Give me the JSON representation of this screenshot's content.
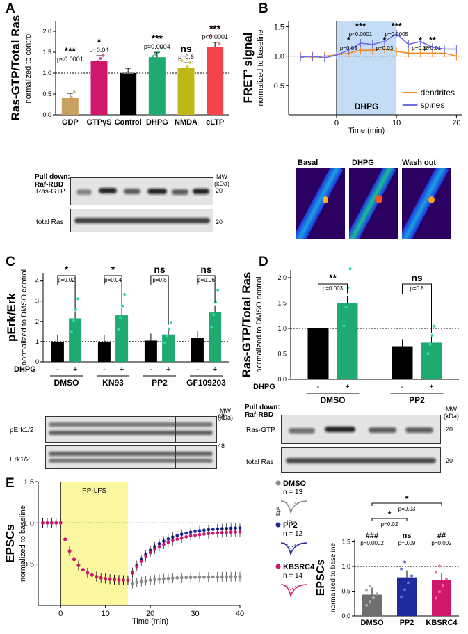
{
  "panels": {
    "A": {
      "label": "A",
      "ylabel": "Ras-GTP/Total Ras",
      "ysub": "normalized to control",
      "yticks": [
        "0.0",
        "0.5",
        "1.0",
        "1.5",
        "2.0"
      ],
      "bars": [
        {
          "name": "GDP",
          "value": 0.4,
          "color": "#c8a060",
          "stars": "***",
          "p": "p<0.0001",
          "points": [
            0.25,
            0.35,
            0.42,
            0.55,
            0.32
          ]
        },
        {
          "name": "GTPγS",
          "value": 1.3,
          "color": "#d0186b",
          "stars": "*",
          "p": "p=0.04",
          "points": [
            1.22,
            1.28,
            1.35,
            1.42
          ]
        },
        {
          "name": "Control",
          "value": 1.0,
          "color": "#000000",
          "stars": "",
          "p": "",
          "points": [
            1.0,
            1.0,
            1.0,
            1.0
          ]
        },
        {
          "name": "DHPG",
          "value": 1.38,
          "color": "#1faa72",
          "stars": "***",
          "p": "p=0.0004",
          "points": [
            1.1,
            1.2,
            1.3,
            1.35,
            1.4,
            1.45,
            1.5,
            1.6,
            1.25
          ]
        },
        {
          "name": "NMDA",
          "value": 1.13,
          "color": "#bfb817",
          "stars": "ns",
          "p": "p=0.6",
          "points": [
            0.9,
            1.05,
            1.15,
            1.25,
            1.3
          ]
        },
        {
          "name": "cLTP",
          "value": 1.62,
          "color": "#f2444a",
          "stars": "***",
          "p": "p<0.0001",
          "points": [
            1.2,
            1.4,
            1.6,
            1.7,
            1.9,
            2.1,
            1.5
          ]
        }
      ],
      "pulldown": "Pull down:",
      "pulldown2": "Raf-RBD",
      "mw": "MW",
      "kda": "(kDa)",
      "blot1": "Ras-GTP",
      "blot2": "total Ras",
      "mw1": "20",
      "mw2": "20"
    },
    "B": {
      "label": "B",
      "ylabel": "FRET’ signal",
      "ysub": "normalized to baseline",
      "xlabel": "Time (min)",
      "xticks": [
        "0",
        "10",
        "20"
      ],
      "yticks": [
        "0.5",
        "1.0",
        "1.5"
      ],
      "shade_label": "DHPG",
      "legend": [
        {
          "name": "dendrites",
          "color": "#f28a1e"
        },
        {
          "name": "spines",
          "color": "#6a6de8"
        }
      ],
      "stats": [
        {
          "stars": "*",
          "p": "p=0.03"
        },
        {
          "stars": "***",
          "p": "p<0.0001"
        },
        {
          "stars": "*",
          "p": "p=0.03"
        },
        {
          "stars": "***",
          "p": "p=0.0005"
        },
        {
          "stars": "*",
          "p": "p=0.03"
        },
        {
          "stars": "**",
          "p": "p=0.01"
        }
      ],
      "chart_data": {
        "type": "line",
        "x": [
          -6,
          -4,
          -2,
          0,
          2,
          4,
          6,
          8,
          10,
          12,
          14,
          16,
          18,
          20
        ],
        "series": [
          {
            "name": "dendrites",
            "values": [
              1.0,
              0.98,
              1.0,
              1.02,
              1.05,
              1.1,
              1.1,
              1.12,
              1.08,
              1.05,
              1.05,
              1.05,
              1.05,
              1.0
            ]
          },
          {
            "name": "spines",
            "values": [
              0.98,
              1.0,
              0.97,
              1.02,
              1.1,
              1.22,
              1.2,
              1.25,
              1.38,
              1.2,
              1.25,
              1.15,
              1.12,
              1.12
            ]
          }
        ],
        "xlim": [
          -8,
          21
        ],
        "ylim": [
          0,
          1.6
        ]
      },
      "img_labels": [
        "Basal",
        "DHPG",
        "Wash out"
      ]
    },
    "C": {
      "label": "C",
      "ylabel": "pErk/Erk",
      "ysub": "normalized to DMSO control",
      "yticks": [
        "0",
        "1",
        "2",
        "3",
        "4"
      ],
      "treat": "DHPG",
      "minus": "-",
      "plus": "+",
      "groups": [
        {
          "name": "DMSO",
          "stars": "*",
          "p": "p=0.02",
          "ctrl": 1.0,
          "trt": 2.15
        },
        {
          "name": "KN93",
          "stars": "*",
          "p": "p=0.04",
          "ctrl": 1.0,
          "trt": 2.3
        },
        {
          "name": "PP2",
          "stars": "ns",
          "p": "p=0.8",
          "ctrl": 1.05,
          "trt": 1.35
        },
        {
          "name": "GF109203",
          "stars": "ns",
          "p": "p=0.06",
          "ctrl": 1.2,
          "trt": 2.45
        }
      ],
      "blot1": "pErk1/2",
      "blot2": "Erk1/2",
      "mw": "MW",
      "kda": "(kDa)",
      "mw1": "48",
      "mw2": "48"
    },
    "D": {
      "label": "D",
      "ylabel": "Ras-GTP/Total Ras",
      "ysub": "normalized to DMSO control",
      "yticks": [
        "0.0",
        "0.5",
        "1.0",
        "1.5",
        "2.0"
      ],
      "treat": "DHPG",
      "minus": "-",
      "plus": "+",
      "groups": [
        {
          "name": "DMSO",
          "stars": "**",
          "p": "p=0.003",
          "ctrl": 1.0,
          "trt": 1.5
        },
        {
          "name": "PP2",
          "stars": "ns",
          "p": "p=0.8",
          "ctrl": 0.65,
          "trt": 0.72
        }
      ],
      "pulldown": "Pull down:",
      "pulldown2": "Raf-RBD",
      "blot1": "Ras-GTP",
      "blot2": "total Ras",
      "mw": "MW",
      "kda": "(kDa)",
      "mw1": "20",
      "mw2": "20"
    },
    "E": {
      "label": "E",
      "ylabel": "EPSCs",
      "ysub": "normalized to baseline",
      "xlabel": "Time (min)",
      "xticks": [
        "0",
        "10",
        "20",
        "30",
        "40"
      ],
      "yticks": [
        "0.5",
        "1.0",
        "1.5"
      ],
      "shade_label": "PP-LFS",
      "legend": [
        {
          "name": "DMSO",
          "n": "n = 13",
          "color": "#8a8a8a"
        },
        {
          "name": "PP2",
          "n": "n = 12",
          "color": "#1f2a9c"
        },
        {
          "name": "KBSRC4",
          "n": "n = 14",
          "color": "#d0186b"
        }
      ],
      "scale1": "50pA",
      "scale2": "10ms",
      "bar_ylabel": "EPSCs",
      "bar_ysub": "normalized to baseline",
      "bar_yticks": [
        "0.0",
        "0.5",
        "1.0",
        "1.5"
      ],
      "bars": [
        {
          "name": "DMSO",
          "value": 0.43,
          "color": "#6f6f6f",
          "stats1": "###",
          "p1": "p=0.0002"
        },
        {
          "name": "PP2",
          "value": 0.78,
          "color": "#1f2a9c",
          "stats1": "ns",
          "p1": "p=0.09"
        },
        {
          "name": "KBSRC4",
          "value": 0.72,
          "color": "#d0186b",
          "stats1": "##",
          "p1": "p=0.002"
        }
      ],
      "cmp": [
        {
          "stars": "*",
          "p": "p=0.02"
        },
        {
          "stars": "*",
          "p": "p=0.03"
        }
      ]
    }
  }
}
